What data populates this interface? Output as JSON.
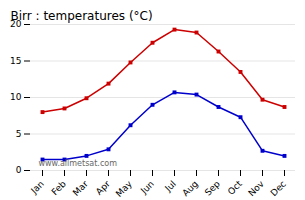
{
  "chart_data": {
    "type": "line",
    "title": "Birr : temperatures (°C)",
    "categories": [
      "Jan",
      "Feb",
      "Mar",
      "Apr",
      "May",
      "Jun",
      "Jul",
      "Aug",
      "Sep",
      "Oct",
      "Nov",
      "Dec"
    ],
    "series": [
      {
        "color": "#cc0000",
        "values": [
          8.0,
          8.5,
          9.9,
          11.9,
          14.8,
          17.5,
          19.3,
          18.9,
          16.3,
          13.5,
          9.7,
          8.7
        ]
      },
      {
        "color": "#0000cc",
        "values": [
          1.5,
          1.5,
          2.0,
          2.9,
          6.2,
          9.0,
          10.7,
          10.4,
          8.7,
          7.3,
          2.7,
          2.0
        ]
      }
    ],
    "ylim": [
      0,
      20
    ],
    "yticks": [
      0,
      5,
      10,
      15,
      20
    ],
    "grid": true,
    "marker": "square",
    "annotations": [
      "www.allmetsat.com"
    ]
  }
}
